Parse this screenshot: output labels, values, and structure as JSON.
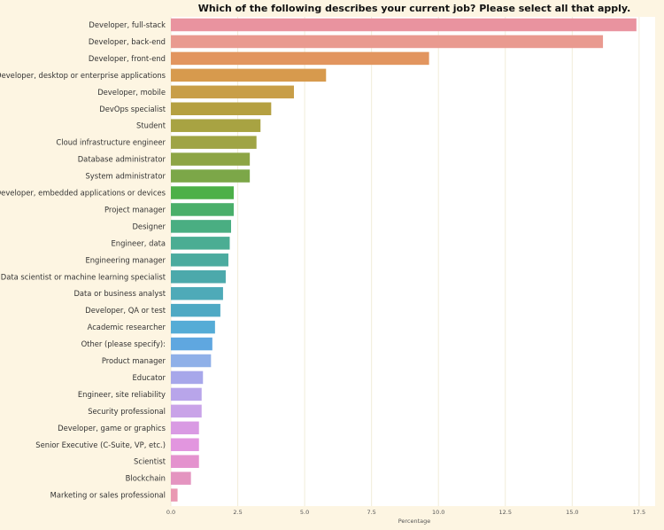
{
  "chart_data": {
    "type": "bar",
    "orientation": "horizontal",
    "title": "Which of the following describes your current job? Please select all that apply.",
    "xlabel": "Percentage",
    "ylabel": "",
    "xlim": [
      0,
      18.1
    ],
    "xticks": [
      0.0,
      2.5,
      5.0,
      7.5,
      10.0,
      12.5,
      15.0,
      17.5
    ],
    "xtick_labels": [
      "0.0",
      "2.5",
      "5.0",
      "7.5",
      "10.0",
      "12.5",
      "15.0",
      "17.5"
    ],
    "grid": "vertical",
    "categories": [
      "Developer, full-stack",
      "Developer, back-end",
      "Developer, front-end",
      "Developer, desktop or enterprise applications",
      "Developer, mobile",
      "DevOps specialist",
      "Student",
      "Cloud infrastructure engineer",
      "Database administrator",
      "System administrator",
      "Developer, embedded applications or devices",
      "Project manager",
      "Designer",
      "Engineer, data",
      "Engineering manager",
      "Data scientist or machine learning specialist",
      "Data or business analyst",
      "Developer, QA or test",
      "Academic researcher",
      "Other (please specify):",
      "Product manager",
      "Educator",
      "Engineer, site reliability",
      "Security professional",
      "Developer, game or graphics",
      "Senior Executive (C-Suite, VP, etc.)",
      "Scientist",
      "Blockchain",
      "Marketing or sales professional"
    ],
    "values": [
      17.4,
      16.15,
      9.65,
      5.8,
      4.6,
      3.75,
      3.35,
      3.2,
      2.95,
      2.95,
      2.35,
      2.35,
      2.25,
      2.2,
      2.15,
      2.05,
      1.95,
      1.85,
      1.65,
      1.55,
      1.5,
      1.2,
      1.15,
      1.15,
      1.05,
      1.05,
      1.05,
      0.75,
      0.25
    ],
    "colors": [
      "#e9939f",
      "#e99a90",
      "#e2955f",
      "#d79a4d",
      "#c89e48",
      "#b5a041",
      "#a8a342",
      "#9fa445",
      "#8da545",
      "#7ca748",
      "#4db048",
      "#4aaf6a",
      "#4aae82",
      "#4bad93",
      "#4bab9f",
      "#4ca9ab",
      "#4eaab8",
      "#4ea9c4",
      "#55acd6",
      "#5fa7e0",
      "#8fb0e8",
      "#a7a7ea",
      "#b8a5ea",
      "#c9a3e8",
      "#d99ae3",
      "#e296df",
      "#e492ce",
      "#e494c0",
      "#e999b2"
    ]
  }
}
